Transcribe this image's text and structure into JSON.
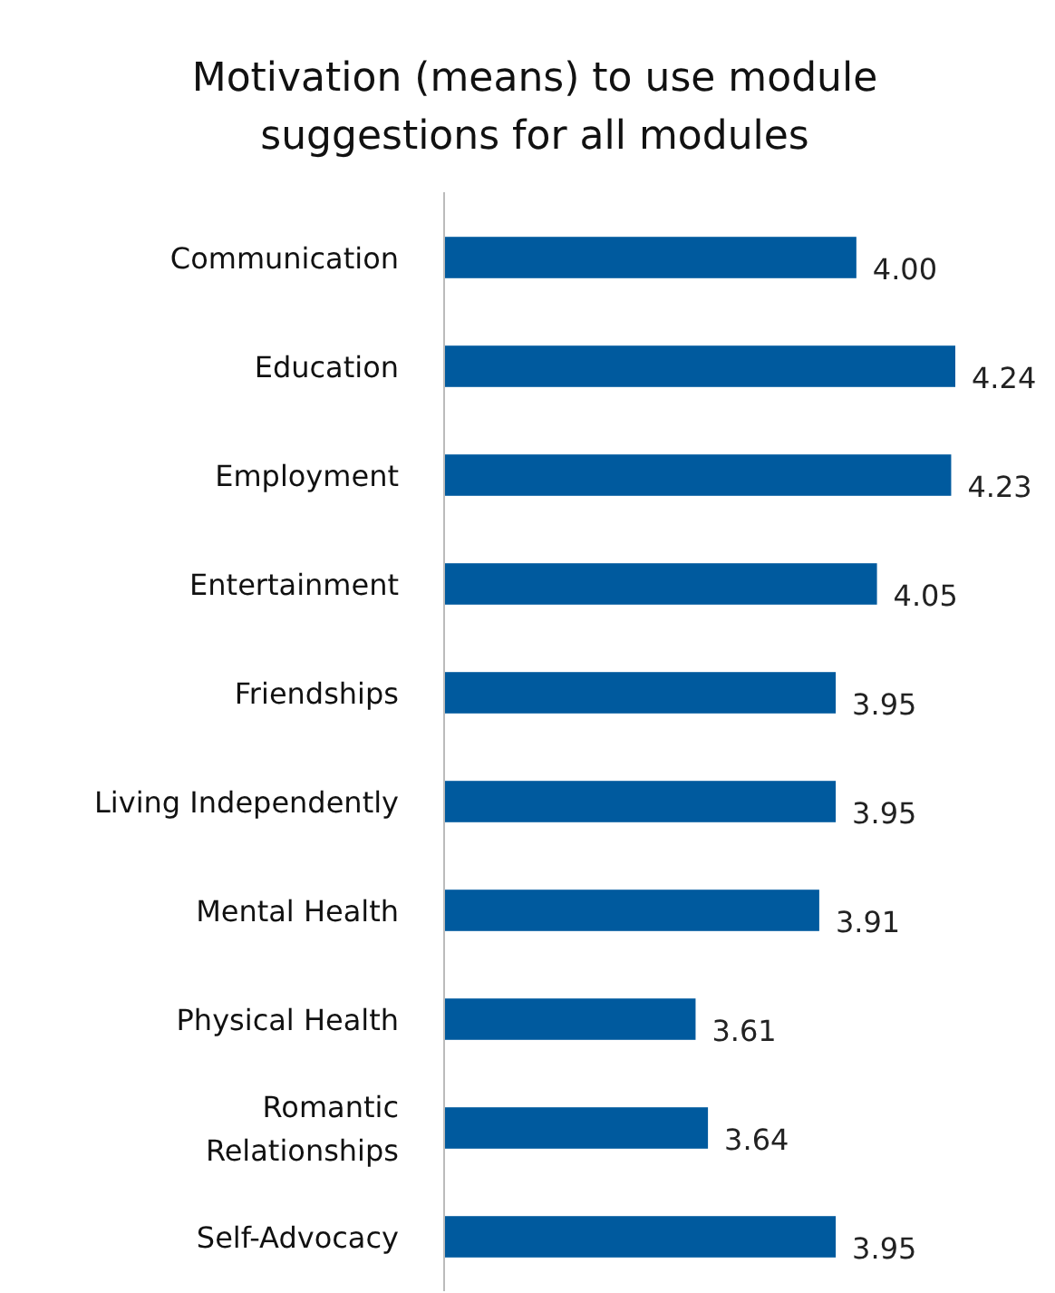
{
  "chart_data": {
    "type": "bar",
    "orientation": "horizontal",
    "title": "Motivation (means) to use module suggestions for all modules",
    "categories": [
      "Communication",
      "Education",
      "Employment",
      "Entertainment",
      "Friendships",
      "Living Independently",
      "Mental Health",
      "Physical Health",
      "Romantic Relationships",
      "Self-Advocacy"
    ],
    "values": [
      4.0,
      4.24,
      4.23,
      4.05,
      3.95,
      3.95,
      3.91,
      3.61,
      3.64,
      3.95
    ],
    "value_labels": [
      "4.00",
      "4.24",
      "4.23",
      "4.05",
      "3.95",
      "3.95",
      "3.91",
      "3.61",
      "3.64",
      "3.95"
    ],
    "color": "#005a9e",
    "xlim": [
      3,
      4.24
    ],
    "tick_labels": "y"
  }
}
